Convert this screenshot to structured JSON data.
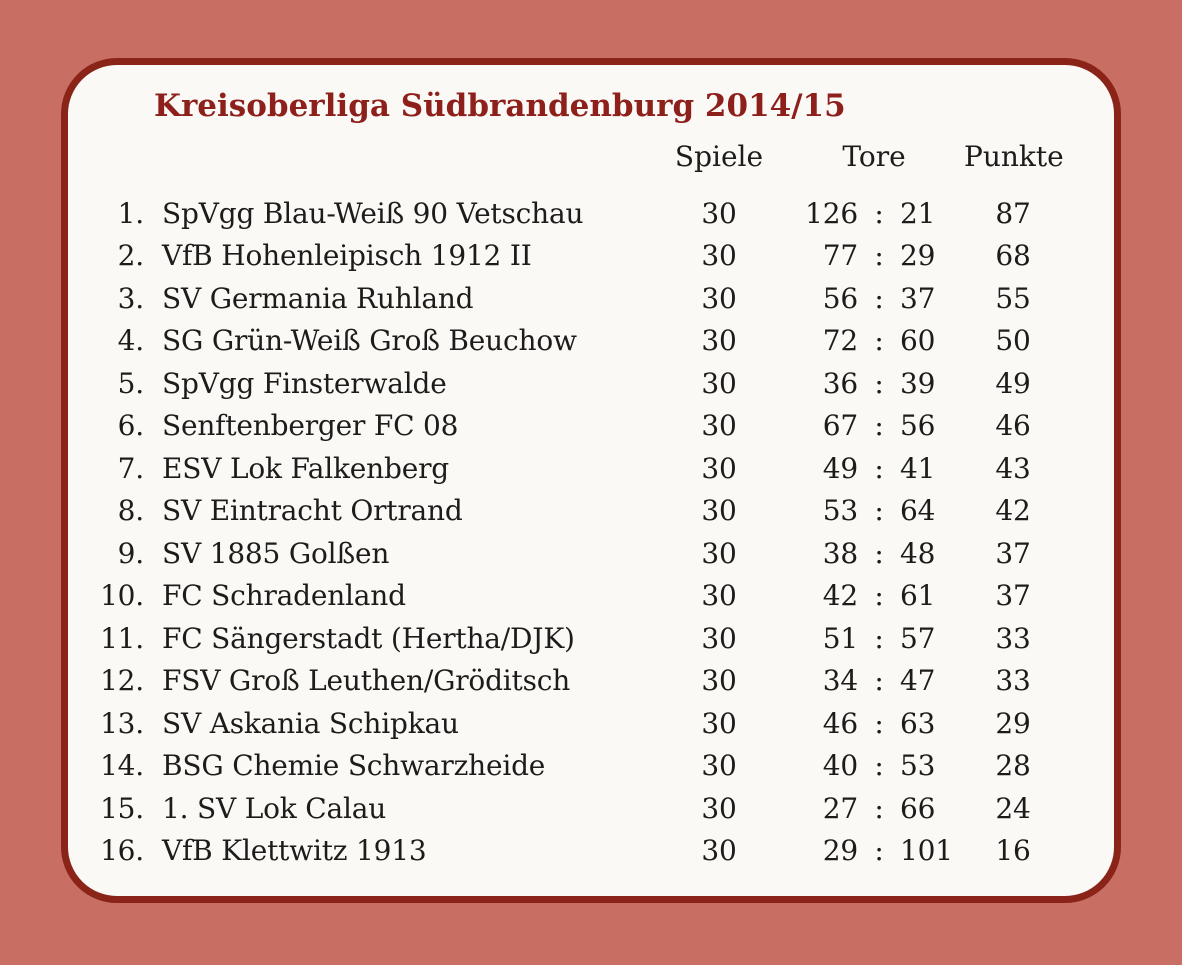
{
  "title": "Kreisoberliga Südbrandenburg 2014/15",
  "table": {
    "headers": {
      "spiele": "Spiele",
      "tore": "Tore",
      "punkte": "Punkte"
    },
    "score_separator": ":",
    "rows": [
      {
        "rank": "1.",
        "team": "SpVgg Blau-Weiß 90 Vetschau",
        "spiele": "30",
        "tore_for": "126",
        "tore_against": "21",
        "punkte": "87"
      },
      {
        "rank": "2.",
        "team": "VfB Hohenleipisch 1912 II",
        "spiele": "30",
        "tore_for": "77",
        "tore_against": "29",
        "punkte": "68"
      },
      {
        "rank": "3.",
        "team": "SV Germania Ruhland",
        "spiele": "30",
        "tore_for": "56",
        "tore_against": "37",
        "punkte": "55"
      },
      {
        "rank": "4.",
        "team": "SG Grün-Weiß Groß Beuchow",
        "spiele": "30",
        "tore_for": "72",
        "tore_against": "60",
        "punkte": "50"
      },
      {
        "rank": "5.",
        "team": "SpVgg Finsterwalde",
        "spiele": "30",
        "tore_for": "36",
        "tore_against": "39",
        "punkte": "49"
      },
      {
        "rank": "6.",
        "team": "Senftenberger FC 08",
        "spiele": "30",
        "tore_for": "67",
        "tore_against": "56",
        "punkte": "46"
      },
      {
        "rank": "7.",
        "team": "ESV Lok Falkenberg",
        "spiele": "30",
        "tore_for": "49",
        "tore_against": "41",
        "punkte": "43"
      },
      {
        "rank": "8.",
        "team": "SV Eintracht Ortrand",
        "spiele": "30",
        "tore_for": "53",
        "tore_against": "64",
        "punkte": "42"
      },
      {
        "rank": "9.",
        "team": "SV 1885 Golßen",
        "spiele": "30",
        "tore_for": "38",
        "tore_against": "48",
        "punkte": "37"
      },
      {
        "rank": "10.",
        "team": "FC Schradenland",
        "spiele": "30",
        "tore_for": "42",
        "tore_against": "61",
        "punkte": "37"
      },
      {
        "rank": "11.",
        "team": "FC Sängerstadt (Hertha/DJK)",
        "spiele": "30",
        "tore_for": "51",
        "tore_against": "57",
        "punkte": "33"
      },
      {
        "rank": "12.",
        "team": "FSV Groß Leuthen/Gröditsch",
        "spiele": "30",
        "tore_for": "34",
        "tore_against": "47",
        "punkte": "33"
      },
      {
        "rank": "13.",
        "team": "SV Askania Schipkau",
        "spiele": "30",
        "tore_for": "46",
        "tore_against": "63",
        "punkte": "29"
      },
      {
        "rank": "14.",
        "team": "BSG Chemie Schwarzheide",
        "spiele": "30",
        "tore_for": "40",
        "tore_against": "53",
        "punkte": "28"
      },
      {
        "rank": "15.",
        "team": "1. SV Lok Calau",
        "spiele": "30",
        "tore_for": "27",
        "tore_against": "66",
        "punkte": "24"
      },
      {
        "rank": "16.",
        "team": "VfB Klettwitz 1913",
        "spiele": "30",
        "tore_for": "29",
        "tore_against": "101",
        "punkte": "16"
      }
    ]
  },
  "colors": {
    "page_background": "#c86e62",
    "card_background": "#faf9f6",
    "card_border": "#8b2418",
    "title_text": "#8e201c",
    "body_text": "#1c1c1a"
  }
}
